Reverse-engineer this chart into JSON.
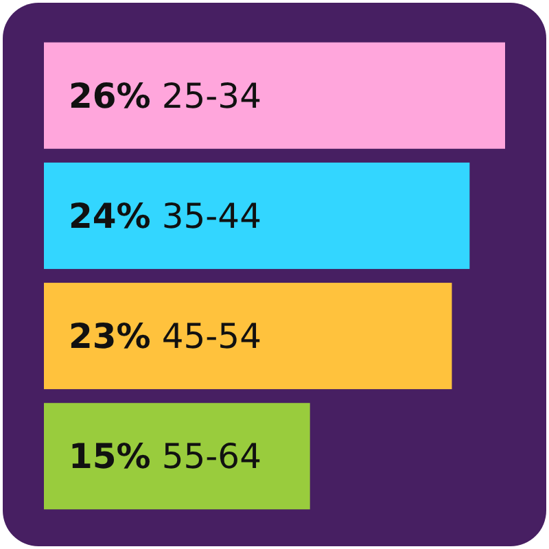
{
  "chart_data": {
    "type": "bar",
    "orientation": "horizontal",
    "categories": [
      "25-34",
      "35-44",
      "45-54",
      "55-64"
    ],
    "values": [
      26,
      24,
      23,
      15
    ],
    "colors": [
      "#ffa6dc",
      "#33d6ff",
      "#ffc23d",
      "#99cc3d"
    ],
    "value_labels": [
      "26%",
      "24%",
      "23%",
      "15%"
    ]
  }
}
